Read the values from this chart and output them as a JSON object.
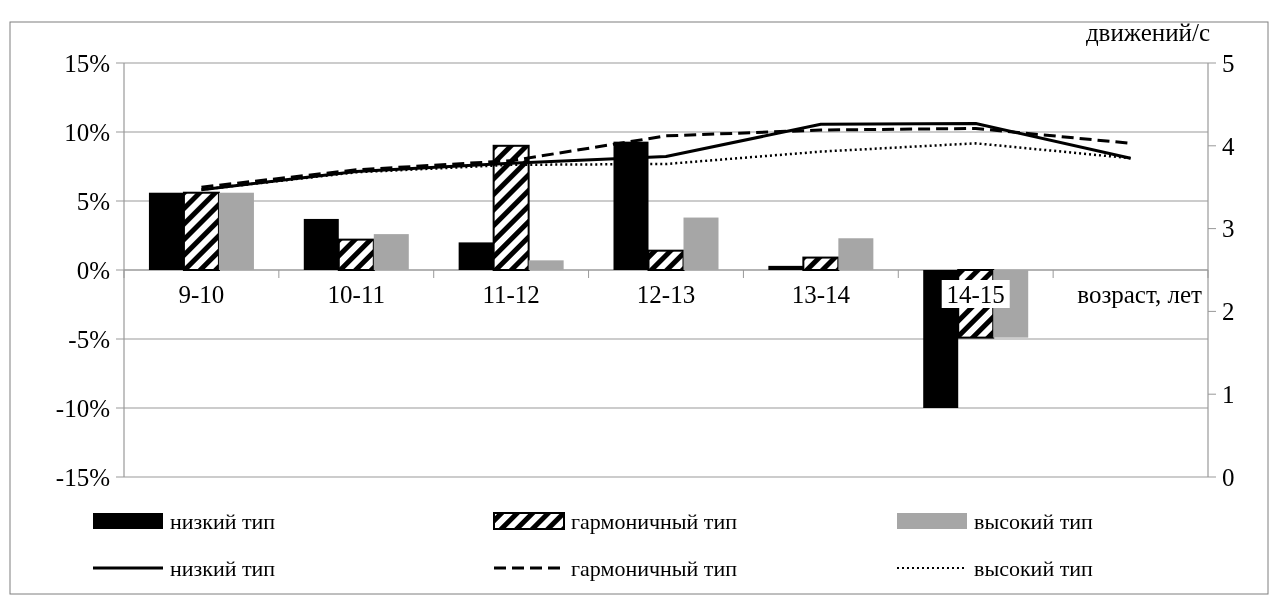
{
  "chart_data": {
    "type": "bar",
    "categories": [
      "9-10",
      "10-11",
      "11-12",
      "12-13",
      "13-14",
      "14-15",
      null
    ],
    "xlabel": "возраст, лет",
    "y2label": "движений/с",
    "series": [
      {
        "name": "низкий тип",
        "color": "#000000",
        "values": [
          5.6,
          3.7,
          2.0,
          9.3,
          0.3,
          -10.0,
          null
        ]
      },
      {
        "name": "гармоничный тип",
        "color": "#000000",
        "values": [
          5.6,
          2.2,
          9.0,
          1.4,
          0.9,
          -4.9,
          null
        ]
      },
      {
        "name": "высокий тип",
        "color": "#a6a6a6",
        "values": [
          5.6,
          2.6,
          0.7,
          3.8,
          2.3,
          -4.9,
          null
        ]
      },
      {
        "name": "низкий тип",
        "type": "line",
        "axis": "y2",
        "line_style": "solid",
        "color": "#000000",
        "values": [
          3.47,
          3.69,
          3.79,
          3.87,
          4.26,
          4.27,
          3.85
        ]
      },
      {
        "name": "гармоничный тип",
        "type": "line",
        "axis": "y2",
        "line_style": "dashed",
        "color": "#000000",
        "values": [
          3.5,
          3.71,
          3.82,
          4.12,
          4.19,
          4.21,
          4.03
        ]
      },
      {
        "name": "высокий тип",
        "type": "line",
        "axis": "y2",
        "line_style": "dotted",
        "color": "#000000",
        "values": [
          3.47,
          3.68,
          3.77,
          3.78,
          3.93,
          4.03,
          3.85
        ]
      }
    ],
    "ylim": [
      -15,
      15
    ],
    "yticks": [
      {
        "value": -15,
        "label": "-15%"
      },
      {
        "value": -10,
        "label": "-10%"
      },
      {
        "value": -5,
        "label": "-5%"
      },
      {
        "value": 0,
        "label": "0%"
      },
      {
        "value": 5,
        "label": "5%"
      },
      {
        "value": 10,
        "label": "10%"
      },
      {
        "value": 15,
        "label": "15%"
      }
    ],
    "y2lim": [
      0,
      5
    ],
    "y2ticks": [
      0,
      1,
      2,
      3,
      4,
      5
    ],
    "grid": "y",
    "legend": "bottom"
  }
}
